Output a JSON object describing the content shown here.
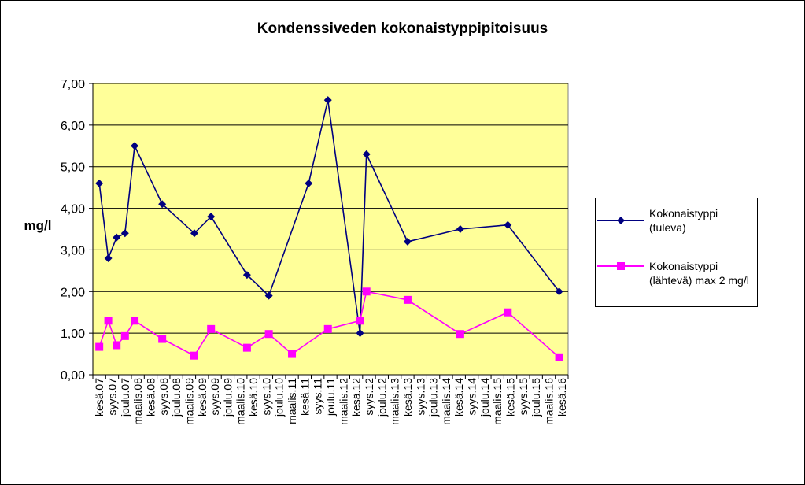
{
  "chart_data": {
    "type": "line",
    "title": "Kondenssiveden kokonaistyppipitoisuus",
    "ylabel": "mg/l",
    "xlabel": "",
    "ylim": [
      0,
      7
    ],
    "yticks": [
      "0,00",
      "1,00",
      "2,00",
      "3,00",
      "4,00",
      "5,00",
      "6,00",
      "7,00"
    ],
    "plot_background": "#ffff99",
    "grid": "horizontal",
    "legend_position": "right",
    "categories": [
      "kesä.07",
      "syys.07",
      "joulu.07",
      "maalis.08",
      "kesä.08",
      "syys.08",
      "joulu.08",
      "maalis.09",
      "kesä.09",
      "syys.09",
      "joulu.09",
      "maalis.10",
      "kesä.10",
      "syys.10",
      "joulu.10",
      "maalis.11",
      "kesä.11",
      "syys.11",
      "joulu.11",
      "maalis.12",
      "kesä.12",
      "syys.12",
      "joulu.12",
      "maalis.13",
      "kesä.13",
      "syys.13",
      "joulu.13",
      "maalis.14",
      "kesä.14",
      "syys.14",
      "joulu.14",
      "maalis.15",
      "kesä.15",
      "syys.15",
      "joulu.15",
      "maalis.16",
      "kesä.16"
    ],
    "series": [
      {
        "name": "Kokonaistyppi (tuleva)",
        "color": "#000080",
        "marker": "diamond",
        "points": [
          [
            0.0,
            4.6
          ],
          [
            0.7,
            2.8
          ],
          [
            1.35,
            3.3
          ],
          [
            2.0,
            3.4
          ],
          [
            2.75,
            5.5
          ],
          [
            4.9,
            4.1
          ],
          [
            7.4,
            3.4
          ],
          [
            8.7,
            3.8
          ],
          [
            11.5,
            2.4
          ],
          [
            13.2,
            1.9
          ],
          [
            16.3,
            4.6
          ],
          [
            17.8,
            6.6
          ],
          [
            20.3,
            1.0
          ],
          [
            20.8,
            5.3
          ],
          [
            24.0,
            3.2
          ],
          [
            28.1,
            3.5
          ],
          [
            31.8,
            3.6
          ],
          [
            35.8,
            2.0
          ]
        ]
      },
      {
        "name": "Kokonaistyppi (lähtevä) max 2 mg/l",
        "color": "#ff00ff",
        "marker": "square",
        "points": [
          [
            0.0,
            0.67
          ],
          [
            0.7,
            1.3
          ],
          [
            1.35,
            0.71
          ],
          [
            2.0,
            0.93
          ],
          [
            2.75,
            1.3
          ],
          [
            4.9,
            0.86
          ],
          [
            7.4,
            0.46
          ],
          [
            8.7,
            1.1
          ],
          [
            11.5,
            0.65
          ],
          [
            13.2,
            0.98
          ],
          [
            15.0,
            0.5
          ],
          [
            17.8,
            1.1
          ],
          [
            20.3,
            1.3
          ],
          [
            20.8,
            2.0
          ],
          [
            24.0,
            1.8
          ],
          [
            28.1,
            0.98
          ],
          [
            31.8,
            1.5
          ],
          [
            35.8,
            0.42
          ]
        ]
      }
    ]
  }
}
